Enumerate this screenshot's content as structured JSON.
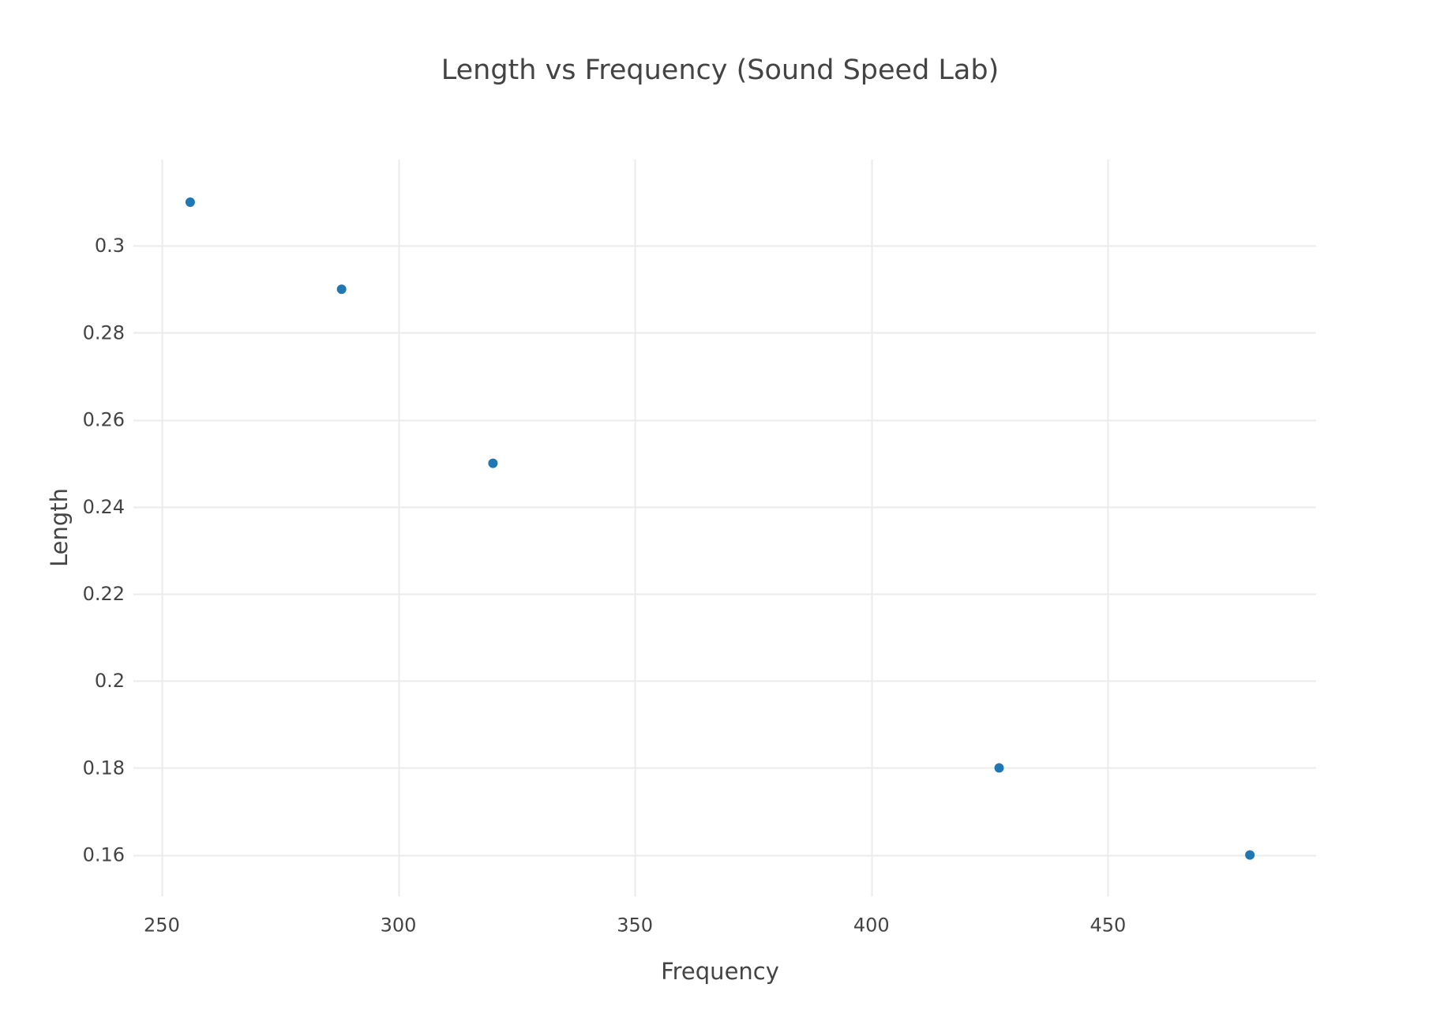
{
  "chart_data": {
    "type": "scatter",
    "title": "Length vs Frequency (Sound Speed Lab)",
    "xlabel": "Frequency",
    "ylabel": "Length",
    "x": [
      256,
      288,
      320,
      427,
      480
    ],
    "y": [
      0.31,
      0.29,
      0.25,
      0.18,
      0.16
    ],
    "xlim": [
      244,
      494
    ],
    "ylim": [
      0.1505,
      0.3198
    ],
    "xticks": [
      250,
      300,
      350,
      400,
      450
    ],
    "xtick_labels": [
      "250",
      "300",
      "350",
      "400",
      "450"
    ],
    "yticks": [
      0.16,
      0.18,
      0.2,
      0.22,
      0.24,
      0.26,
      0.28,
      0.3
    ],
    "ytick_labels": [
      "0.16",
      "0.18",
      "0.2",
      "0.22",
      "0.24",
      "0.26",
      "0.28",
      "0.3"
    ],
    "grid": true,
    "legend": "none",
    "colors": {
      "marker": "#1f77b4",
      "grid": "#ebebeb",
      "text": "#444444",
      "background": "#ffffff"
    }
  }
}
